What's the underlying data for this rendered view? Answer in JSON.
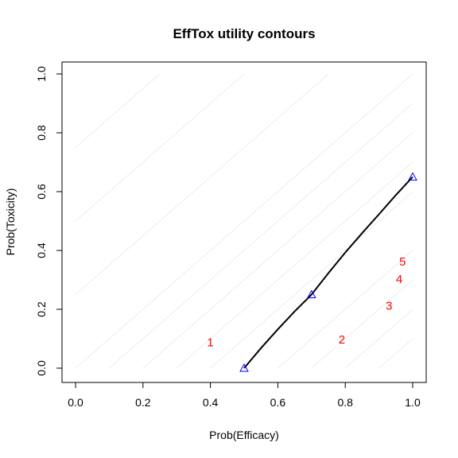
{
  "chart_data": {
    "type": "scatter",
    "title": "EffTox utility contours",
    "xlabel": "Prob(Efficacy)",
    "ylabel": "Prob(Toxicity)",
    "xlim": [
      0,
      1
    ],
    "ylim": [
      0,
      1
    ],
    "x_ticks": [
      "0.0",
      "0.2",
      "0.4",
      "0.6",
      "0.8",
      "1.0"
    ],
    "y_ticks": [
      "0.0",
      "0.2",
      "0.4",
      "0.6",
      "0.8",
      "1.0"
    ],
    "grid": false,
    "neutral_contour": {
      "points": [
        {
          "x": 0.5,
          "y": 0.0
        },
        {
          "x": 0.7,
          "y": 0.25
        },
        {
          "x": 1.0,
          "y": 0.65
        }
      ],
      "curve": [
        {
          "x": 0.5,
          "y": 0.0
        },
        {
          "x": 0.55,
          "y": 0.068
        },
        {
          "x": 0.6,
          "y": 0.132
        },
        {
          "x": 0.65,
          "y": 0.193
        },
        {
          "x": 0.7,
          "y": 0.25
        },
        {
          "x": 0.75,
          "y": 0.323
        },
        {
          "x": 0.8,
          "y": 0.393
        },
        {
          "x": 0.85,
          "y": 0.459
        },
        {
          "x": 0.9,
          "y": 0.523
        },
        {
          "x": 0.95,
          "y": 0.588
        },
        {
          "x": 1.0,
          "y": 0.65
        }
      ],
      "line_color": "#000000",
      "marker_color": "#0000ff"
    },
    "background_contours": {
      "color": "#ececec",
      "lines": [
        [
          {
            "x": 0.0,
            "y": 0.75
          },
          {
            "x": 0.25,
            "y": 1.0
          }
        ],
        [
          {
            "x": 0.0,
            "y": 0.5
          },
          {
            "x": 0.5,
            "y": 1.0
          }
        ],
        [
          {
            "x": 0.0,
            "y": 0.25
          },
          {
            "x": 0.75,
            "y": 1.0
          }
        ],
        [
          {
            "x": 0.0,
            "y": 0.0
          },
          {
            "x": 1.0,
            "y": 1.0
          }
        ],
        [
          {
            "x": 0.1,
            "y": 0.0
          },
          {
            "x": 1.0,
            "y": 0.9
          }
        ],
        [
          {
            "x": 0.2,
            "y": 0.0
          },
          {
            "x": 1.0,
            "y": 0.8
          }
        ],
        [
          {
            "x": 0.3,
            "y": 0.0
          },
          {
            "x": 1.0,
            "y": 0.7
          }
        ],
        [
          {
            "x": 0.4,
            "y": 0.0
          },
          {
            "x": 1.0,
            "y": 0.6
          }
        ],
        [
          {
            "x": 0.6,
            "y": 0.0
          },
          {
            "x": 1.0,
            "y": 0.4
          }
        ],
        [
          {
            "x": 0.7,
            "y": 0.0
          },
          {
            "x": 1.0,
            "y": 0.3
          }
        ],
        [
          {
            "x": 0.8,
            "y": 0.0
          },
          {
            "x": 1.0,
            "y": 0.2
          }
        ],
        [
          {
            "x": 0.9,
            "y": 0.0
          },
          {
            "x": 1.0,
            "y": 0.1
          }
        ]
      ]
    },
    "dose_labels": {
      "color": "#ff0000",
      "points": [
        {
          "label": "1",
          "x": 0.4,
          "y": 0.085
        },
        {
          "label": "2",
          "x": 0.79,
          "y": 0.095
        },
        {
          "label": "3",
          "x": 0.93,
          "y": 0.21
        },
        {
          "label": "4",
          "x": 0.96,
          "y": 0.3
        },
        {
          "label": "5",
          "x": 0.97,
          "y": 0.36
        }
      ]
    }
  }
}
